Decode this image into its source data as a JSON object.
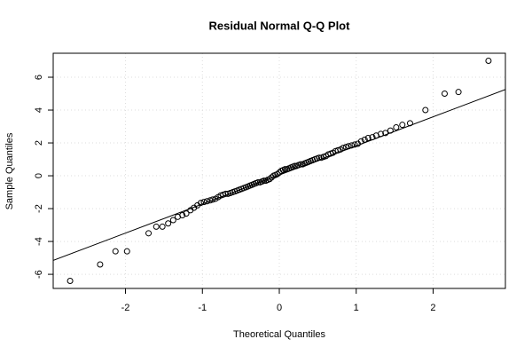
{
  "chart_data": {
    "type": "scatter",
    "title": "Residual Normal Q-Q Plot",
    "x_label": "Theoretical Quantiles",
    "y_label": "Sample Quantiles",
    "xlim": [
      -2.94,
      2.94
    ],
    "ylim": [
      -6.86,
      7.46
    ],
    "xticks": [
      -2,
      -1,
      0,
      1,
      2
    ],
    "yticks": [
      -6,
      -4,
      -2,
      0,
      2,
      4,
      6
    ],
    "grid": true,
    "color": "#000000",
    "qq_line": {
      "intercept": 0.05,
      "slope": 1.77
    },
    "x": [
      -2.72,
      -2.33,
      -2.13,
      -1.98,
      -1.7,
      -1.6,
      -1.52,
      -1.445,
      -1.38,
      -1.32,
      -1.26,
      -1.21,
      -1.155,
      -1.11,
      -1.065,
      -1.02,
      -0.98,
      -0.94,
      -0.9,
      -0.867,
      -0.83,
      -0.795,
      -0.762,
      -0.73,
      -0.697,
      -0.667,
      -0.637,
      -0.606,
      -0.576,
      -0.547,
      -0.519,
      -0.49,
      -0.462,
      -0.434,
      -0.407,
      -0.382,
      -0.355,
      -0.329,
      -0.303,
      -0.277,
      -0.25,
      -0.225,
      -0.2,
      -0.175,
      -0.15,
      -0.125,
      -0.1,
      -0.075,
      -0.05,
      -0.025,
      0,
      0.025,
      0.05,
      0.075,
      0.1,
      0.125,
      0.15,
      0.175,
      0.2,
      0.225,
      0.25,
      0.277,
      0.303,
      0.329,
      0.355,
      0.382,
      0.407,
      0.434,
      0.462,
      0.49,
      0.519,
      0.547,
      0.576,
      0.606,
      0.637,
      0.667,
      0.697,
      0.73,
      0.762,
      0.795,
      0.83,
      0.867,
      0.9,
      0.94,
      0.98,
      1.02,
      1.065,
      1.11,
      1.155,
      1.21,
      1.26,
      1.32,
      1.38,
      1.445,
      1.52,
      1.6,
      1.7,
      1.9,
      2.15,
      2.33,
      2.72
    ],
    "values": [
      -6.4,
      -5.4,
      -4.6,
      -4.6,
      -3.5,
      -3.1,
      -3.1,
      -2.9,
      -2.7,
      -2.5,
      -2.4,
      -2.3,
      -2.1,
      -1.95,
      -1.8,
      -1.65,
      -1.6,
      -1.55,
      -1.5,
      -1.45,
      -1.4,
      -1.3,
      -1.2,
      -1.15,
      -1.1,
      -1.1,
      -1.05,
      -1.0,
      -0.95,
      -0.9,
      -0.85,
      -0.8,
      -0.75,
      -0.7,
      -0.65,
      -0.6,
      -0.55,
      -0.5,
      -0.45,
      -0.4,
      -0.4,
      -0.35,
      -0.3,
      -0.3,
      -0.25,
      -0.2,
      -0.1,
      0,
      0.05,
      0.1,
      0.2,
      0.3,
      0.35,
      0.4,
      0.4,
      0.45,
      0.5,
      0.55,
      0.6,
      0.6,
      0.65,
      0.7,
      0.7,
      0.75,
      0.8,
      0.85,
      0.9,
      0.95,
      1.0,
      1.05,
      1.1,
      1.1,
      1.15,
      1.2,
      1.3,
      1.35,
      1.4,
      1.5,
      1.55,
      1.6,
      1.7,
      1.75,
      1.8,
      1.85,
      1.9,
      1.95,
      2.1,
      2.2,
      2.3,
      2.35,
      2.45,
      2.55,
      2.6,
      2.75,
      2.95,
      3.1,
      3.2,
      4.0,
      5.0,
      5.1,
      7.0
    ]
  }
}
